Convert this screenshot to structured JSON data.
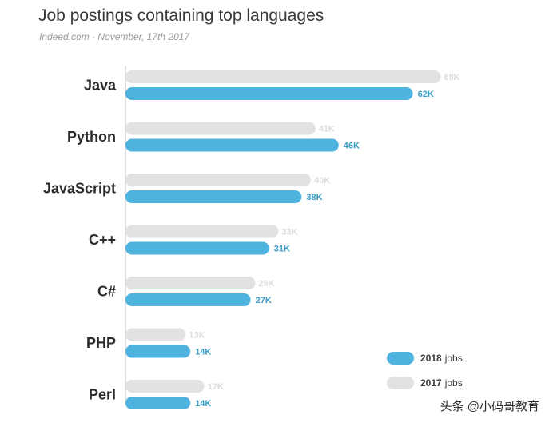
{
  "chart_data": {
    "type": "bar",
    "orientation": "horizontal",
    "title": "Job postings containing top languages",
    "subtitle": "Indeed.com - November, 17th 2017",
    "categories": [
      "Java",
      "Python",
      "JavaScript",
      "C++",
      "C#",
      "PHP",
      "Perl"
    ],
    "series": [
      {
        "name": "2017",
        "label_suffix": "jobs",
        "color": "#e2e2e2",
        "values": [
          68,
          41,
          40,
          33,
          28,
          13,
          17
        ],
        "labels": [
          "68K",
          "41K",
          "40K",
          "33K",
          "28K",
          "13K",
          "17K"
        ]
      },
      {
        "name": "2018",
        "label_suffix": "jobs",
        "color": "#4fb3e0",
        "values": [
          62,
          46,
          38,
          31,
          27,
          14,
          14
        ],
        "labels": [
          "62K",
          "46K",
          "38K",
          "31K",
          "27K",
          "14K",
          "14K"
        ]
      }
    ],
    "xlim": [
      0,
      68
    ],
    "unit": "K",
    "grid": false,
    "legend_position": "bottom-right"
  },
  "legend": {
    "items": [
      {
        "year": "2018",
        "suffix": "jobs",
        "color": "#4fb3e0"
      },
      {
        "year": "2017",
        "suffix": "jobs",
        "color": "#e2e2e2"
      }
    ]
  },
  "watermark": {
    "text": "头条 @小码哥教育"
  }
}
